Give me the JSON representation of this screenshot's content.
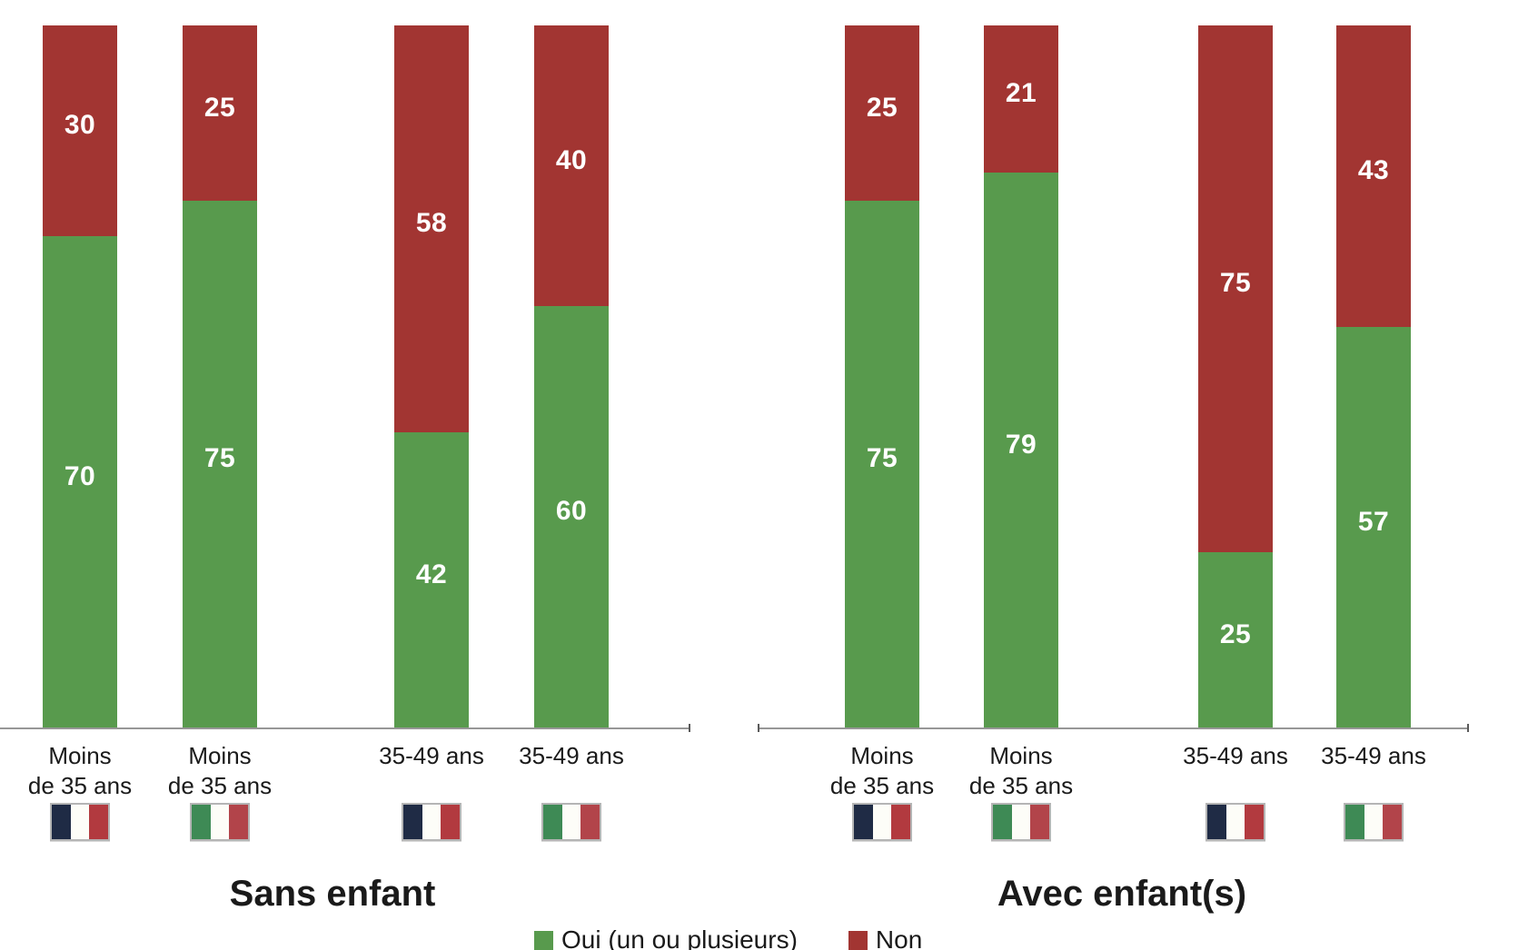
{
  "chart_data": {
    "type": "bar",
    "stacked": true,
    "unit": "percent",
    "ylim": [
      0,
      100
    ],
    "grid": false,
    "legend_position": "bottom",
    "series_names": [
      "Oui (un ou plusieurs)",
      "Non"
    ],
    "groups": [
      {
        "title": "Sans enfant",
        "bars": [
          {
            "age_lines": [
              "Moins",
              "de 35 ans"
            ],
            "flag": "france-flag-icon",
            "oui": 70,
            "non": 30
          },
          {
            "age_lines": [
              "Moins",
              "de 35 ans"
            ],
            "flag": "italy-flag-icon",
            "oui": 75,
            "non": 25
          },
          {
            "age_lines": [
              "35-49 ans"
            ],
            "flag": "france-flag-icon",
            "oui": 42,
            "non": 58
          },
          {
            "age_lines": [
              "35-49 ans"
            ],
            "flag": "italy-flag-icon",
            "oui": 60,
            "non": 40
          }
        ]
      },
      {
        "title": "Avec enfant(s)",
        "bars": [
          {
            "age_lines": [
              "Moins",
              "de 35 ans"
            ],
            "flag": "france-flag-icon",
            "oui": 75,
            "non": 25
          },
          {
            "age_lines": [
              "Moins",
              "de 35 ans"
            ],
            "flag": "italy-flag-icon",
            "oui": 79,
            "non": 21
          },
          {
            "age_lines": [
              "35-49 ans"
            ],
            "flag": "france-flag-icon",
            "oui": 25,
            "non": 75
          },
          {
            "age_lines": [
              "35-49 ans"
            ],
            "flag": "italy-flag-icon",
            "oui": 57,
            "non": 43
          }
        ]
      }
    ],
    "legend": [
      {
        "label": "Oui (un ou plusieurs)",
        "color": "#589a4d"
      },
      {
        "label": "Non",
        "color": "#a23532"
      }
    ]
  },
  "colors": {
    "bar_oui": "#589a4d",
    "bar_non": "#a23532",
    "axis_line": "#979797",
    "axis_tick": "#5a5a5a",
    "text": "#1a1a1a",
    "france_flag": [
      "#1f2b45",
      "#fdfdf8",
      "#b23a3f"
    ],
    "italy_flag": [
      "#3e8a55",
      "#fdfdf8",
      "#b2444a"
    ]
  }
}
